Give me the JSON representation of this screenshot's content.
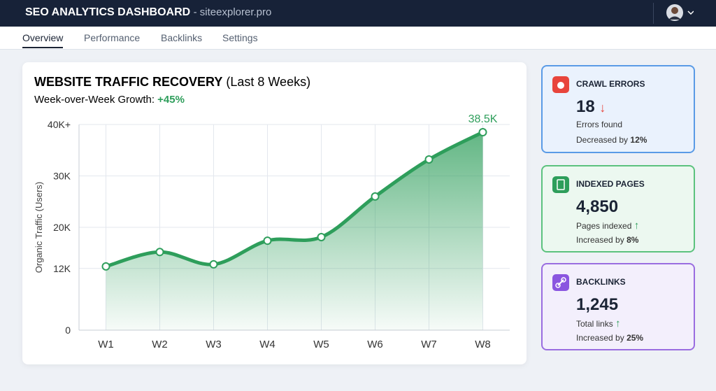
{
  "header": {
    "title": "SEO ANALYTICS DASHBOARD",
    "site": "- siteexplorer.pro"
  },
  "nav": [
    "Overview",
    "Performance",
    "Backlinks",
    "Settings"
  ],
  "chart_data": {
    "type": "line",
    "title": "WEBSITE TRAFFIC RECOVERY",
    "title_suffix": "(Last 8 Weeks)",
    "subtitle": "Week-over-Week Growth:",
    "subtitle_value": "+45%",
    "ylabel": "Organic Traffic (Users)",
    "categories": [
      "W1",
      "W2",
      "W3",
      "W4",
      "W5",
      "W6",
      "W7",
      "W8"
    ],
    "values": [
      12400,
      15200,
      12800,
      17400,
      18100,
      26000,
      33200,
      38500
    ],
    "value_labels": [
      null,
      null,
      null,
      null,
      null,
      null,
      null,
      "38.5K"
    ],
    "color": "#2e9e5b",
    "ylim": [
      0,
      40000
    ],
    "yticks": [
      0,
      {
        "value": 12000,
        "label": "12K"
      },
      {
        "value": 20000,
        "label": "20K"
      },
      {
        "value": 30000,
        "label": "30K"
      },
      {
        "value": 40000,
        "label": "40K+"
      }
    ],
    "grid": true
  },
  "cards": [
    {
      "title": "CRAWL ERRORS",
      "value": "18",
      "note": "Errors found",
      "change": "Decreased by",
      "change_value": "12%"
    },
    {
      "title": "INDEXED PAGES",
      "value": "4,850",
      "note": "Pages indexed",
      "change": "Increased by",
      "change_value": "8%"
    },
    {
      "title": "BACKLINKS",
      "value": "1,245",
      "note": "Total links",
      "change": "Increased by",
      "change_value": "25%"
    }
  ]
}
